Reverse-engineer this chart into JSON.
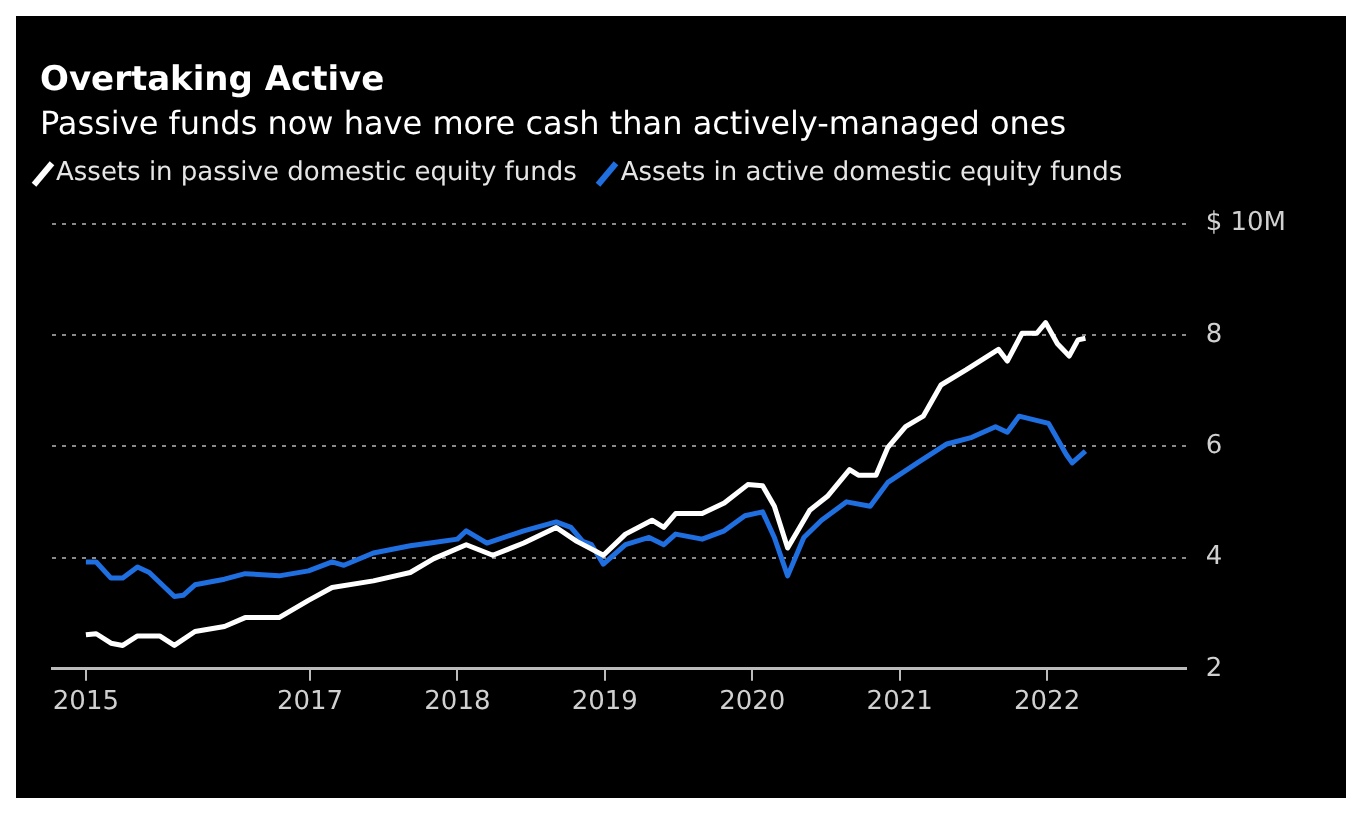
{
  "chart_data": {
    "type": "line",
    "title": "Overtaking Active",
    "subtitle": "Passive funds now have more cash than actively-managed ones",
    "legend": "top left",
    "grid": "y",
    "line_style": "solid",
    "marker": "none",
    "xlim": [
      2015.25,
      2022.94
    ],
    "xticks": [
      {
        "value": 2015.48,
        "label": "2015"
      },
      2017,
      2018,
      2019,
      2020,
      2021,
      2022
    ],
    "ylim": [
      2,
      10
    ],
    "yticks": [
      2,
      4,
      6,
      8,
      {
        "value": 10,
        "label": "$ 10M"
      }
    ],
    "series": [
      {
        "name": "Assets in passive domestic equity funds",
        "color": "#ffffff",
        "x": [
          2015.48,
          2015.55,
          2015.65,
          2015.73,
          2015.83,
          2015.98,
          2016.08,
          2016.22,
          2016.42,
          2016.56,
          2016.79,
          2016.99,
          2017.15,
          2017.43,
          2017.68,
          2017.84,
          2018.06,
          2018.24,
          2018.45,
          2018.67,
          2018.81,
          2018.99,
          2019.14,
          2019.32,
          2019.4,
          2019.48,
          2019.66,
          2019.81,
          2019.97,
          2020.07,
          2020.15,
          2020.24,
          2020.39,
          2020.51,
          2020.66,
          2020.72,
          2020.84,
          2020.92,
          2021.04,
          2021.16,
          2021.28,
          2021.45,
          2021.67,
          2021.73,
          2021.83,
          2021.93,
          2021.99,
          2022.07,
          2022.15,
          2022.21,
          2022.26
        ],
        "values": [
          2.61,
          2.63,
          2.46,
          2.42,
          2.59,
          2.59,
          2.42,
          2.67,
          2.76,
          2.92,
          2.92,
          3.23,
          3.46,
          3.58,
          3.73,
          3.98,
          4.23,
          4.04,
          4.26,
          4.54,
          4.29,
          4.04,
          4.42,
          4.67,
          4.54,
          4.79,
          4.79,
          4.98,
          5.31,
          5.29,
          4.92,
          4.17,
          4.85,
          5.1,
          5.58,
          5.48,
          5.48,
          5.98,
          6.35,
          6.54,
          7.1,
          7.37,
          7.74,
          7.53,
          8.03,
          8.03,
          8.22,
          7.84,
          7.62,
          7.91,
          7.94
        ]
      },
      {
        "name": "Assets in active domestic equity funds",
        "color": "#1f6fe0",
        "x": [
          2015.48,
          2015.55,
          2015.65,
          2015.73,
          2015.83,
          2015.91,
          2016.08,
          2016.14,
          2016.22,
          2016.42,
          2016.56,
          2016.79,
          2016.99,
          2017.15,
          2017.23,
          2017.43,
          2017.68,
          2017.84,
          2018.0,
          2018.06,
          2018.2,
          2018.45,
          2018.67,
          2018.77,
          2018.85,
          2018.91,
          2018.99,
          2019.14,
          2019.3,
          2019.4,
          2019.48,
          2019.66,
          2019.81,
          2019.95,
          2020.07,
          2020.15,
          2020.24,
          2020.35,
          2020.47,
          2020.64,
          2020.8,
          2020.92,
          2021.12,
          2021.32,
          2021.49,
          2021.65,
          2021.73,
          2021.81,
          2022.01,
          2022.13,
          2022.17,
          2022.26
        ],
        "values": [
          3.92,
          3.92,
          3.63,
          3.63,
          3.83,
          3.73,
          3.3,
          3.32,
          3.51,
          3.61,
          3.71,
          3.67,
          3.76,
          3.92,
          3.86,
          4.08,
          4.21,
          4.27,
          4.33,
          4.48,
          4.26,
          4.48,
          4.64,
          4.54,
          4.29,
          4.23,
          3.88,
          4.23,
          4.36,
          4.23,
          4.42,
          4.33,
          4.48,
          4.75,
          4.82,
          4.36,
          3.67,
          4.36,
          4.67,
          5.0,
          4.92,
          5.35,
          5.7,
          6.04,
          6.16,
          6.35,
          6.25,
          6.54,
          6.41,
          5.85,
          5.7,
          5.91
        ]
      }
    ]
  }
}
